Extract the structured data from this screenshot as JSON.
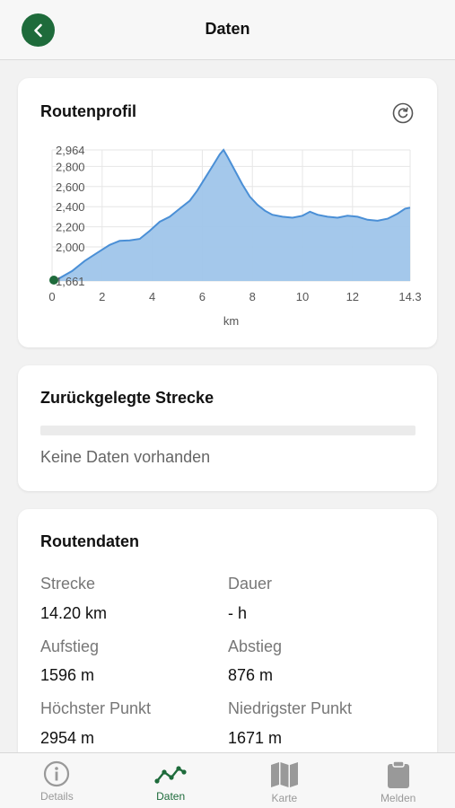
{
  "header": {
    "title": "Daten"
  },
  "profile": {
    "title": "Routenprofil",
    "xlabel": "km"
  },
  "chart_data": {
    "type": "area",
    "title": "Routenprofil",
    "xlabel": "km",
    "ylabel": "",
    "xlim": [
      0,
      14.3
    ],
    "ylim": [
      1661,
      2964
    ],
    "x_ticks": [
      "0",
      "2",
      "4",
      "6",
      "8",
      "10",
      "12",
      "14.3"
    ],
    "y_ticks": [
      "1,661",
      "2,000",
      "2,200",
      "2,400",
      "2,600",
      "2,800",
      "2,964"
    ],
    "grid": true,
    "color": "#9fc5ea",
    "line_color": "#4a8fd6",
    "series": [
      {
        "x": [
          0,
          0.3,
          0.8,
          1.3,
          1.8,
          2.3,
          2.7,
          3.1,
          3.5,
          3.9,
          4.3,
          4.7,
          5.1,
          5.5,
          5.8,
          6.1,
          6.4,
          6.7,
          6.85,
          7.0,
          7.3,
          7.6,
          7.9,
          8.2,
          8.5,
          8.8,
          9.2,
          9.6,
          10.0,
          10.3,
          10.6,
          11.0,
          11.4,
          11.8,
          12.2,
          12.6,
          13.0,
          13.4,
          13.8,
          14.1,
          14.3
        ],
        "y": [
          1661,
          1690,
          1760,
          1860,
          1940,
          2020,
          2060,
          2065,
          2080,
          2160,
          2250,
          2300,
          2380,
          2460,
          2560,
          2680,
          2800,
          2920,
          2964,
          2900,
          2760,
          2620,
          2500,
          2420,
          2360,
          2320,
          2300,
          2290,
          2310,
          2350,
          2320,
          2300,
          2290,
          2310,
          2300,
          2270,
          2260,
          2280,
          2330,
          2380,
          2390
        ]
      }
    ],
    "start_marker_color": "#1e6b3b"
  },
  "distance": {
    "title": "Zurückgelegte Strecke",
    "empty_text": "Keine Daten vorhanden",
    "progress_fraction": 0
  },
  "routedata": {
    "title": "Routendaten",
    "strecke_label": "Strecke",
    "strecke_value": "14.20 km",
    "dauer_label": "Dauer",
    "dauer_value": "- h",
    "aufstieg_label": "Aufstieg",
    "aufstieg_value": "1596 m",
    "abstieg_label": "Abstieg",
    "abstieg_value": "876 m",
    "hoechster_label": "Höchster Punkt",
    "hoechster_value": "2954 m",
    "niedrigster_label": "Niedrigster Punkt",
    "niedrigster_value": "1671 m"
  },
  "tabbar": {
    "items": [
      {
        "label": "Details",
        "icon": "info-icon"
      },
      {
        "label": "Daten",
        "icon": "chart-line-icon"
      },
      {
        "label": "Karte",
        "icon": "map-icon"
      },
      {
        "label": "Melden",
        "icon": "clipboard-icon"
      }
    ],
    "active_color": "#1e6b3b",
    "inactive_color": "#999999"
  }
}
